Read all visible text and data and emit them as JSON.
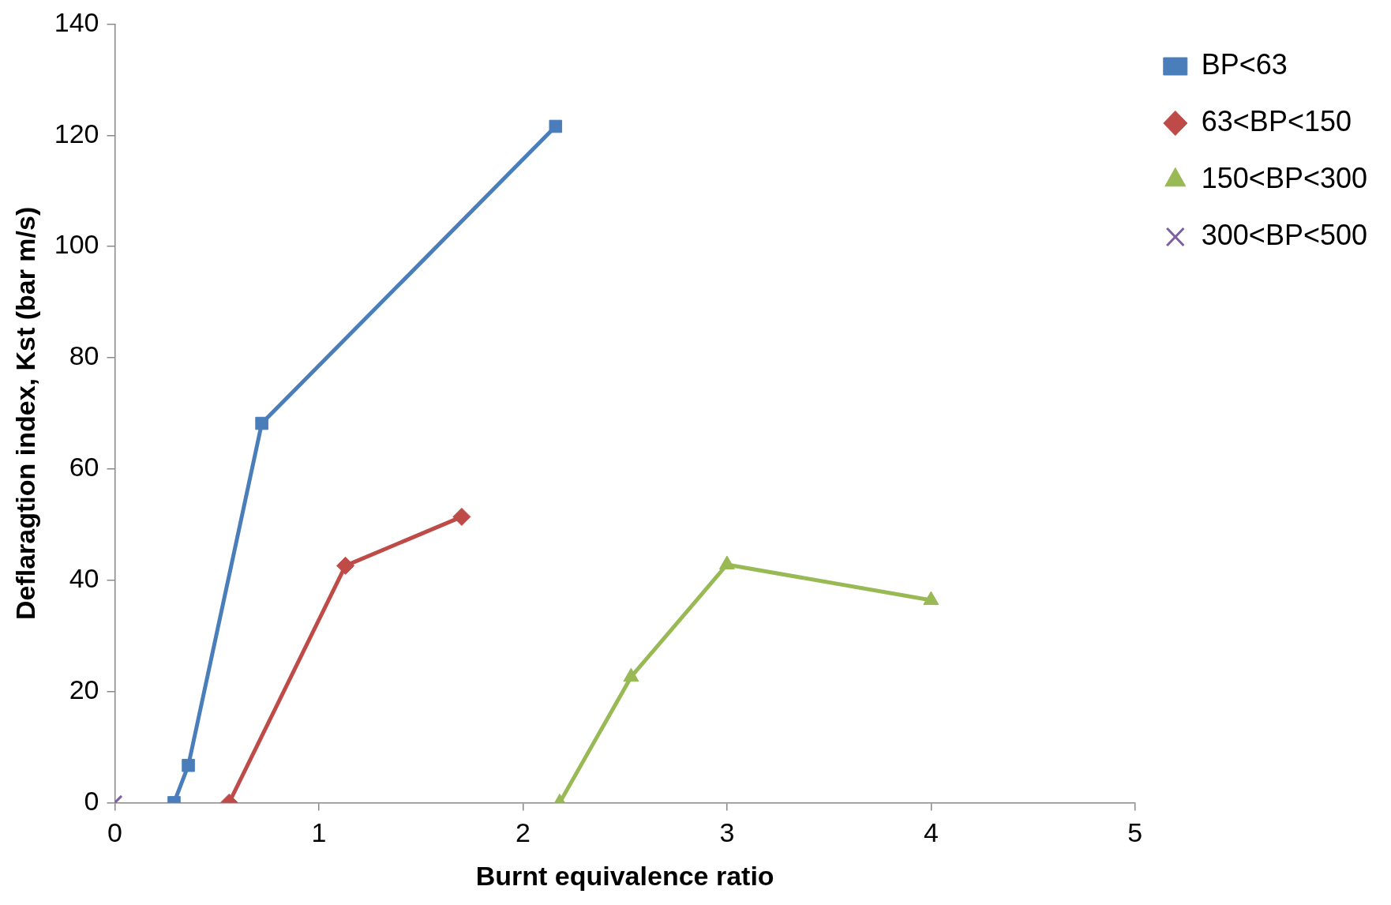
{
  "chart_data": {
    "type": "line",
    "xlabel": "Burnt equivalence ratio",
    "ylabel": "Deflaragtion index, Kst (bar m/s)",
    "xlim": [
      0,
      5
    ],
    "xticks": [
      0,
      1,
      2,
      3,
      4,
      5
    ],
    "ylim": [
      0,
      140
    ],
    "yticks": [
      0,
      20,
      40,
      60,
      80,
      100,
      120,
      140
    ],
    "grid": false,
    "legend": "top right",
    "line_style": "solid",
    "series": [
      {
        "name": "BP<63",
        "color": "#4a7ebb",
        "marker": "square",
        "x": [
          0.29,
          0.36,
          0.72,
          2.16
        ],
        "values": [
          0,
          6.7,
          68.2,
          121.6
        ]
      },
      {
        "name": "63<BP<150",
        "color": "#be4b48",
        "marker": "diamond",
        "x": [
          0.56,
          1.13,
          1.7
        ],
        "values": [
          0,
          42.6,
          51.4
        ]
      },
      {
        "name": "150<BP<300",
        "color": "#98b954",
        "marker": "triangle",
        "x": [
          2.18,
          2.53,
          3.0,
          4.0
        ],
        "values": [
          0,
          22.6,
          42.8,
          36.4
        ]
      },
      {
        "name": "300<BP<500",
        "color": "#7d5fa0",
        "marker": "cross",
        "x": [
          0
        ],
        "values": [
          0
        ]
      }
    ]
  }
}
